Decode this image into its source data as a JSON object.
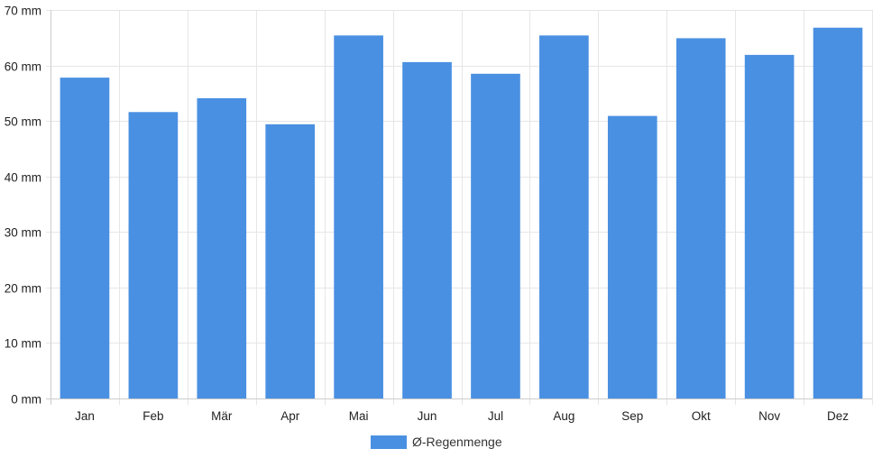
{
  "chart_data": {
    "type": "bar",
    "categories": [
      "Jan",
      "Feb",
      "Mär",
      "Apr",
      "Mai",
      "Jun",
      "Jul",
      "Aug",
      "Sep",
      "Okt",
      "Nov",
      "Dez"
    ],
    "series": [
      {
        "name": "Ø-Regenmenge",
        "values": [
          57.8,
          51.6,
          54.1,
          49.4,
          65.4,
          60.6,
          58.5,
          65.4,
          50.9,
          64.9,
          61.9,
          66.8
        ]
      }
    ],
    "ylim": [
      0,
      70
    ],
    "y_ticks": [
      0,
      10,
      20,
      30,
      40,
      50,
      60,
      70
    ],
    "y_unit": "mm",
    "y_tick_labels": [
      "0 mm",
      "10 mm",
      "20 mm",
      "30 mm",
      "40 mm",
      "50 mm",
      "60 mm",
      "70 mm"
    ],
    "grid": true,
    "legend_position": "bottom",
    "colors": {
      "bar": "#4a90e2",
      "grid": "#e6e6e6",
      "axis": "#cccccc"
    }
  }
}
